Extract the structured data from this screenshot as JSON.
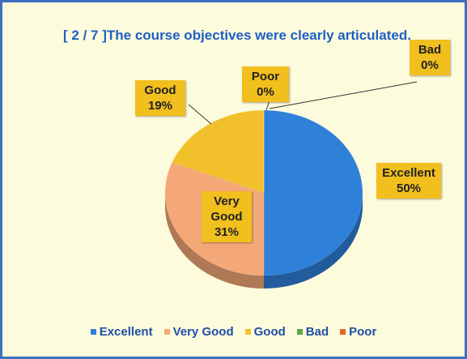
{
  "chart_data": {
    "type": "pie",
    "title": "[ 2 / 7 ]The course objectives were clearly articulated.",
    "categories": [
      "Excellent",
      "Very Good",
      "Good",
      "Bad",
      "Poor"
    ],
    "values": [
      50,
      31,
      19,
      0,
      0
    ],
    "value_labels": [
      "50%",
      "31%",
      "19%",
      "0%",
      "0%"
    ],
    "colors": [
      "#2f80d8",
      "#f4a878",
      "#f2c02a",
      "#5aa84a",
      "#e0662a"
    ],
    "legend": "bottom"
  }
}
